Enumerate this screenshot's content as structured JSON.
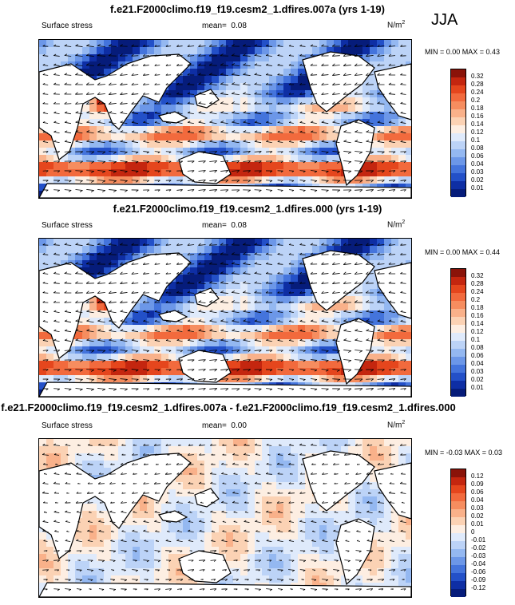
{
  "season": "JJA",
  "panels": [
    {
      "title": "f.e21.F2000climo.f19_f19.cesm2_1.dfires.007a (yrs 1-19)",
      "variable": "Surface stress",
      "mean_label": "mean=",
      "mean_value": "0.08",
      "units": "N/m",
      "units_sup": "2",
      "minmax": "MIN =  0.00 MAX =  0.43",
      "type": "absolute",
      "colorbar_levels": [
        "0.32",
        "0.28",
        "0.24",
        "0.2",
        "0.18",
        "0.16",
        "0.14",
        "0.12",
        "0.1",
        "0.08",
        "0.06",
        "0.04",
        "0.03",
        "0.02",
        "0.01"
      ],
      "colorbar_colors": [
        "#8a1309",
        "#c4260f",
        "#e5461d",
        "#f26a3d",
        "#f68d5f",
        "#f9b18a",
        "#fbd2b4",
        "#fdeee2",
        "#dfeafb",
        "#bcd3f7",
        "#94b8f1",
        "#6c97e8",
        "#4474dc",
        "#2350c8",
        "#0e2ea4",
        "#061c7a"
      ]
    },
    {
      "title": "f.e21.F2000climo.f19_f19.cesm2_1.dfires.000 (yrs 1-19)",
      "variable": "Surface stress",
      "mean_label": "mean=",
      "mean_value": "0.08",
      "units": "N/m",
      "units_sup": "2",
      "minmax": "MIN =  0.00 MAX =  0.44",
      "type": "absolute",
      "colorbar_levels": [
        "0.32",
        "0.28",
        "0.24",
        "0.2",
        "0.18",
        "0.16",
        "0.14",
        "0.12",
        "0.1",
        "0.08",
        "0.06",
        "0.04",
        "0.03",
        "0.02",
        "0.01"
      ],
      "colorbar_colors": [
        "#8a1309",
        "#c4260f",
        "#e5461d",
        "#f26a3d",
        "#f68d5f",
        "#f9b18a",
        "#fbd2b4",
        "#fdeee2",
        "#dfeafb",
        "#bcd3f7",
        "#94b8f1",
        "#6c97e8",
        "#4474dc",
        "#2350c8",
        "#0e2ea4",
        "#061c7a"
      ]
    },
    {
      "title": "f.e21.F2000climo.f19_f19.cesm2_1.dfires.007a - f.e21.F2000climo.f19_f19.cesm2_1.dfires.000",
      "variable": "Surface stress",
      "mean_label": "mean=",
      "mean_value": "0.00",
      "units": "N/m",
      "units_sup": "2",
      "minmax": "MIN = -0.03 MAX =  0.03",
      "type": "difference",
      "colorbar_levels": [
        "0.12",
        "0.09",
        "0.06",
        "0.04",
        "0.03",
        "0.02",
        "0.01",
        "0",
        "-0.01",
        "-0.02",
        "-0.03",
        "-0.04",
        "-0.06",
        "-0.09",
        "-0.12"
      ],
      "colorbar_colors": [
        "#8a1309",
        "#c4260f",
        "#e5461d",
        "#f26a3d",
        "#f68d5f",
        "#f9b18a",
        "#fbd2b4",
        "#fdeee2",
        "#dfeafb",
        "#bcd3f7",
        "#94b8f1",
        "#6c97e8",
        "#4474dc",
        "#2350c8",
        "#0e2ea4",
        "#061c7a"
      ]
    }
  ]
}
